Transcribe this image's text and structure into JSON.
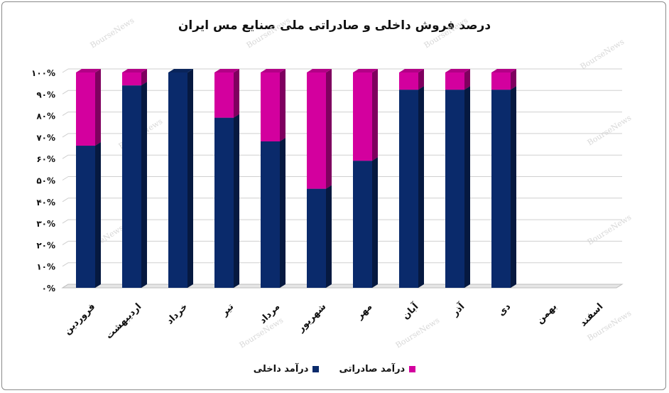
{
  "chart_data": {
    "type": "bar",
    "stacked": true,
    "title": "درصد فروش  داخلی و صادراتی ملی صنایع مس ایران",
    "categories": [
      "فروردین",
      "اردیبهشت",
      "خرداد",
      "تیر",
      "مرداد",
      "شهریور",
      "مهر",
      "آبان",
      "آذر",
      "دی",
      "بهمن",
      "اسفند"
    ],
    "series": [
      {
        "name": "درآمد داخلی",
        "color": "#0a2a6b",
        "values": [
          66,
          94,
          100,
          79,
          68,
          46,
          59,
          92,
          92,
          92,
          null,
          null
        ]
      },
      {
        "name": "درآمد صادراتی",
        "color": "#d3009e",
        "values": [
          34,
          6,
          0,
          21,
          32,
          54,
          41,
          8,
          8,
          8,
          null,
          null
        ]
      }
    ],
    "ylim": [
      0,
      100
    ],
    "yticks": [
      "۰%",
      "۱۰%",
      "۲۰%",
      "۳۰%",
      "۴۰%",
      "۵۰%",
      "۶۰%",
      "۷۰%",
      "۸۰%",
      "۹۰%",
      "۱۰۰%"
    ],
    "grid": true,
    "legend_position": "bottom",
    "watermark": "BourseNews"
  }
}
